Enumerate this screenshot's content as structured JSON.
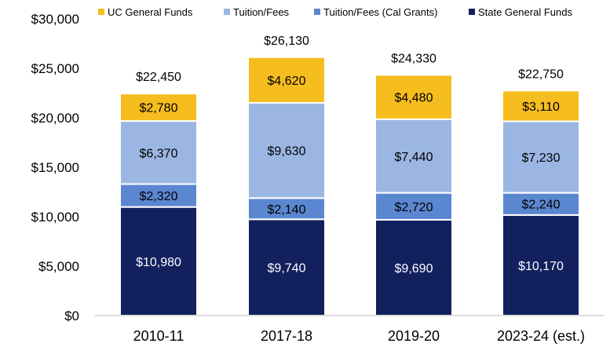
{
  "chart_data": {
    "type": "bar",
    "stacked": true,
    "categories": [
      "2010-11",
      "2017-18",
      "2019-20",
      "2023-24 (est.)"
    ],
    "series": [
      {
        "name": "State General Funds",
        "color": "#12215e",
        "label_color": "#ffffff",
        "values": [
          10980,
          9740,
          9690,
          10170
        ],
        "labels": [
          "$10,980",
          "$9,740",
          "$9,690",
          "$10,170"
        ]
      },
      {
        "name": "Tuition/Fees (Cal Grants)",
        "color": "#5b87d1",
        "label_color": "#000000",
        "values": [
          2320,
          2140,
          2720,
          2240
        ],
        "labels": [
          "$2,320",
          "$2,140",
          "$2,720",
          "$2,240"
        ]
      },
      {
        "name": "Tuition/Fees",
        "color": "#9bb6e3",
        "label_color": "#000000",
        "values": [
          6370,
          9630,
          7440,
          7230
        ],
        "labels": [
          "$6,370",
          "$9,630",
          "$7,440",
          "$7,230"
        ]
      },
      {
        "name": "UC General Funds",
        "color": "#f6bd1f",
        "label_color": "#000000",
        "values": [
          2780,
          4620,
          4480,
          3110
        ],
        "labels": [
          "$2,780",
          "$4,620",
          "$4,480",
          "$3,110"
        ]
      }
    ],
    "totals": [
      22450,
      26130,
      24330,
      22750
    ],
    "total_labels": [
      "$22,450",
      "$26,130",
      "$24,330",
      "$22,750"
    ],
    "legend": [
      "UC General Funds",
      "Tuition/Fees",
      "Tuition/Fees (Cal Grants)",
      "State General Funds"
    ],
    "ylim": [
      0,
      30000
    ],
    "yticks": [
      0,
      5000,
      10000,
      15000,
      20000,
      25000,
      30000
    ],
    "ytick_labels": [
      "$0",
      "$5,000",
      "$10,000",
      "$15,000",
      "$20,000",
      "$25,000",
      "$30,000"
    ],
    "grid": false,
    "legend_position": "top"
  }
}
